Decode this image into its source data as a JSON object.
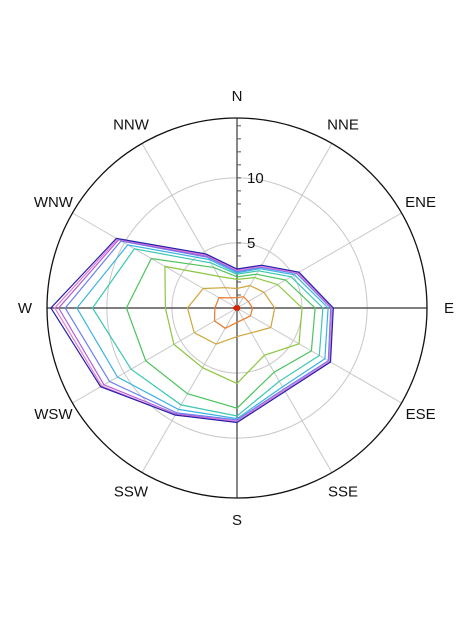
{
  "chart_data": {
    "type": "radar",
    "title": "",
    "directions": [
      "N",
      "NNE",
      "ENE",
      "E",
      "ESE",
      "SSE",
      "S",
      "SSW",
      "WSW",
      "W",
      "WNW",
      "NNW"
    ],
    "r_range": [
      0,
      14.6
    ],
    "r_ticks": [
      5,
      10
    ],
    "r_tick_labels": [
      "5",
      "10"
    ],
    "grid_circles": [
      5,
      10
    ],
    "series": [
      {
        "color": "#cc2200",
        "values": [
          0.1,
          0.2,
          0.2,
          0.2,
          0.2,
          0.2,
          0.1,
          0.2,
          0.2,
          0.3,
          0.2,
          0.2
        ]
      },
      {
        "color": "#e97b2a",
        "values": [
          0.8,
          1.0,
          1.0,
          1.2,
          1.2,
          1.0,
          1.1,
          1.8,
          2.0,
          1.7,
          1.6,
          0.9
        ]
      },
      {
        "color": "#cfa63a",
        "values": [
          1.5,
          2.0,
          2.4,
          2.9,
          3.0,
          2.2,
          2.2,
          3.2,
          3.8,
          3.8,
          3.0,
          1.8
        ]
      },
      {
        "color": "#8cc63f",
        "values": [
          2.2,
          2.7,
          3.6,
          5.0,
          5.5,
          4.2,
          5.8,
          5.3,
          5.6,
          5.5,
          6.4,
          2.8
        ]
      },
      {
        "color": "#4cc35a",
        "values": [
          2.4,
          3.0,
          4.3,
          6.0,
          6.6,
          5.7,
          7.7,
          7.6,
          8.1,
          8.5,
          7.6,
          3.6
        ]
      },
      {
        "color": "#3cc7b0",
        "values": [
          2.6,
          3.3,
          4.8,
          6.6,
          7.3,
          6.5,
          8.3,
          8.6,
          9.4,
          11.1,
          9.1,
          4.0
        ]
      },
      {
        "color": "#3ab3e3",
        "values": [
          2.7,
          3.5,
          5.1,
          7.0,
          7.8,
          7.0,
          8.5,
          9.0,
          10.6,
          12.3,
          9.7,
          4.3
        ]
      },
      {
        "color": "#6a7ff0",
        "values": [
          2.8,
          3.6,
          5.3,
          7.2,
          8.1,
          7.2,
          8.6,
          9.3,
          11.3,
          13.2,
          10.3,
          4.5
        ]
      },
      {
        "color": "#b05fd6",
        "values": [
          2.9,
          3.7,
          5.4,
          7.3,
          8.2,
          7.3,
          8.7,
          9.4,
          11.8,
          13.7,
          10.5,
          4.6
        ]
      },
      {
        "color": "#e57ad6",
        "values": [
          2.9,
          3.7,
          5.4,
          7.3,
          8.2,
          7.3,
          8.7,
          9.5,
          12.0,
          14.0,
          10.6,
          4.7
        ]
      },
      {
        "color": "#2222aa",
        "values": [
          3.0,
          3.8,
          5.5,
          7.4,
          8.3,
          7.4,
          8.8,
          9.5,
          12.1,
          14.3,
          10.7,
          4.8
        ]
      }
    ],
    "grid": true,
    "legend": "none",
    "calm_marker_color": "#dd2200"
  }
}
